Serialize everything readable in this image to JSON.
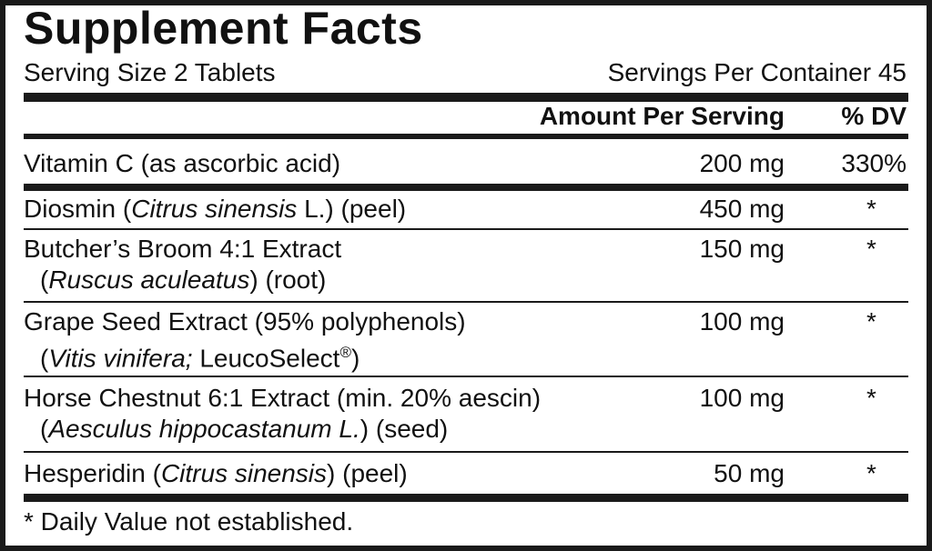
{
  "title": "Supplement Facts",
  "serving_size": "Serving Size 2 Tablets",
  "servings_per_container": "Servings Per Container 45",
  "header": {
    "amount": "Amount Per Serving",
    "dv": "% DV"
  },
  "rows": [
    {
      "name": "Vitamin C (as ascorbic acid)",
      "amount": "200 mg",
      "dv": "330%"
    },
    {
      "name_pre": "Diosmin (",
      "name_italic": "Citrus sinensis",
      "name_post": " L.) (peel)",
      "amount": "450 mg",
      "dv": "*"
    },
    {
      "name": "Butcher’s Broom 4:1 Extract",
      "sub_pre": "(",
      "sub_italic": "Ruscus aculeatus",
      "sub_post": ") (root)",
      "amount": "150 mg",
      "dv": "*"
    },
    {
      "name": "Grape Seed Extract (95% polyphenols)",
      "sub_pre": "(",
      "sub_italic": "Vitis vinifera;",
      "sub_post": " LeucoSelect",
      "sub_mark": "®",
      "sub_end": ")",
      "amount": "100 mg",
      "dv": "*"
    },
    {
      "name": "Horse Chestnut 6:1 Extract (min. 20% aescin)",
      "sub_pre": "(",
      "sub_italic": "Aesculus hippocastanum L.",
      "sub_post": ") (seed)",
      "amount": "100 mg",
      "dv": "*"
    },
    {
      "name_pre": "Hesperidin (",
      "name_italic": "Citrus sinensis",
      "name_post": ") (peel)",
      "amount": "50 mg",
      "dv": "*"
    }
  ],
  "footnote": "* Daily Value not established."
}
